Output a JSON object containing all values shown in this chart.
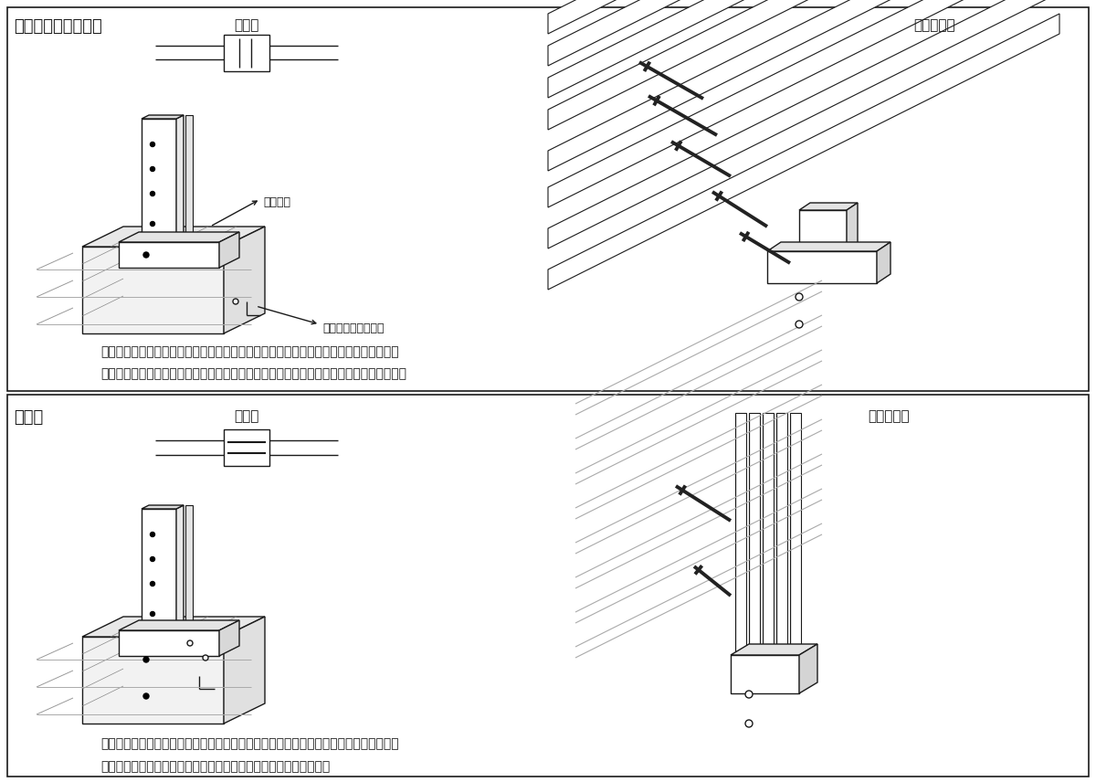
{
  "title_top": "スタイルフェンス用",
  "title_bottom": "竹垣用",
  "label_top_view": "上面図",
  "label_screw_top": "ビス止め例",
  "label_screw_bottom": "ビス止め例",
  "label_claw": "爪の向き",
  "label_block": "ブロックの連続方向",
  "text_top_1": "柱取り付け用の爪が、上図左のようにブロックの連続方向と垂直になっていますので、",
  "text_top_2": "上図右のようにスタイルフェンスなど、ブロックの正面からのビス打ちに適しています。",
  "text_bottom_1": "柱取り付け用の爪が、上図左のようにブロックの連続方向と平行になっていますので、",
  "text_bottom_2": "上図右のように竹垣など、柱の側面へのビス打ちに適しています。",
  "bg_color": "#ffffff",
  "line_color": "#1a1a1a"
}
